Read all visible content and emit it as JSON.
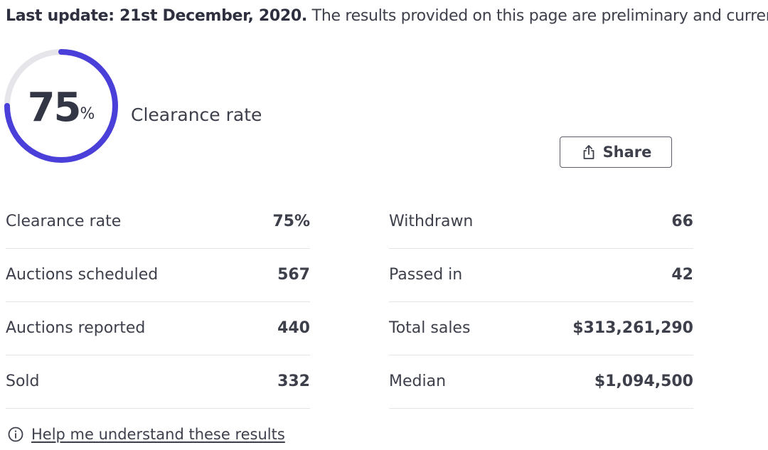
{
  "header": {
    "update_bold": "Last update: 21st December, 2020.",
    "update_text": " The results provided on this page are preliminary and current"
  },
  "gauge": {
    "value": "75",
    "unit": "%",
    "fraction": 0.75,
    "label": "Clearance rate",
    "colors": {
      "track": "#e6e6ea",
      "fill": "#4a3fd8"
    }
  },
  "share": {
    "label": "Share",
    "icon": "share-icon"
  },
  "stats": {
    "left": [
      {
        "label": "Clearance rate",
        "value": "75%"
      },
      {
        "label": "Auctions scheduled",
        "value": "567"
      },
      {
        "label": "Auctions reported",
        "value": "440"
      },
      {
        "label": "Sold",
        "value": "332"
      }
    ],
    "right": [
      {
        "label": "Withdrawn",
        "value": "66"
      },
      {
        "label": "Passed in",
        "value": "42"
      },
      {
        "label": "Total sales",
        "value": "$313,261,290"
      },
      {
        "label": "Median",
        "value": "$1,094,500"
      }
    ]
  },
  "help": {
    "label": "Help me understand these results",
    "icon": "info-icon"
  }
}
